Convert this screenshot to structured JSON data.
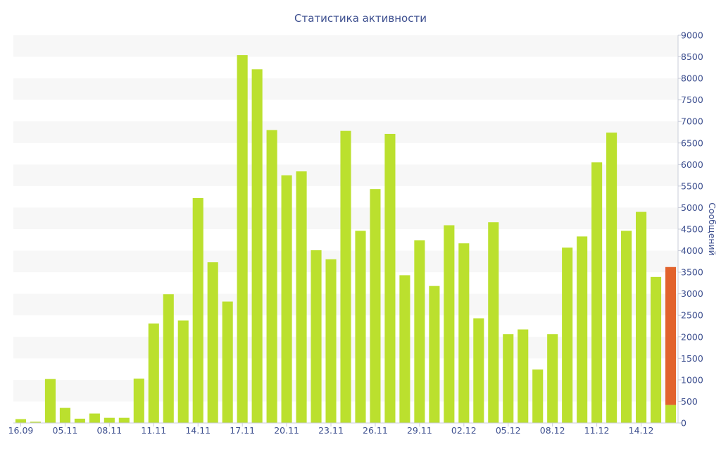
{
  "chart_data": {
    "type": "bar",
    "title": "Статистика активности",
    "xlabel": "",
    "ylabel": "Сообщений",
    "ylim": [
      0,
      9000
    ],
    "y_ticks": [
      0,
      500,
      1000,
      1500,
      2000,
      2500,
      3000,
      3500,
      4000,
      4500,
      5000,
      5500,
      6000,
      6500,
      7000,
      7500,
      8000,
      8500,
      9000
    ],
    "y_axis_position": "right",
    "grid": "alternating horizontal bands",
    "legend": "none",
    "categories": [
      "16.09",
      "",
      "",
      "05.11",
      "",
      "",
      "08.11",
      "",
      "",
      "11.11",
      "",
      "",
      "14.11",
      "",
      "",
      "17.11",
      "",
      "",
      "20.11",
      "",
      "",
      "23.11",
      "",
      "",
      "26.11",
      "",
      "",
      "29.11",
      "",
      "",
      "02.12",
      "",
      "",
      "05.12",
      "",
      "",
      "08.12",
      "",
      "",
      "11.12",
      "",
      "",
      "14.12",
      "",
      ""
    ],
    "series": [
      {
        "color": "#bbe02e",
        "values": [
          90,
          30,
          1020,
          350,
          100,
          220,
          120,
          120,
          1030,
          2310,
          2990,
          2380,
          5220,
          3730,
          2820,
          8540,
          8210,
          6800,
          5750,
          5840,
          4010,
          3800,
          6780,
          4460,
          5430,
          6710,
          3430,
          4240,
          3180,
          4590,
          4170,
          2430,
          4660,
          2060,
          2170,
          1240,
          2060,
          4070,
          4330,
          6050,
          6740,
          4460,
          4900,
          3390,
          420
        ]
      },
      {
        "color": "#e2632d",
        "values": [
          0,
          0,
          0,
          0,
          0,
          0,
          0,
          0,
          0,
          0,
          0,
          0,
          0,
          0,
          0,
          0,
          0,
          0,
          0,
          0,
          0,
          0,
          0,
          0,
          0,
          0,
          0,
          0,
          0,
          0,
          0,
          0,
          0,
          0,
          0,
          0,
          0,
          0,
          0,
          0,
          0,
          0,
          0,
          0,
          3200
        ]
      }
    ]
  }
}
